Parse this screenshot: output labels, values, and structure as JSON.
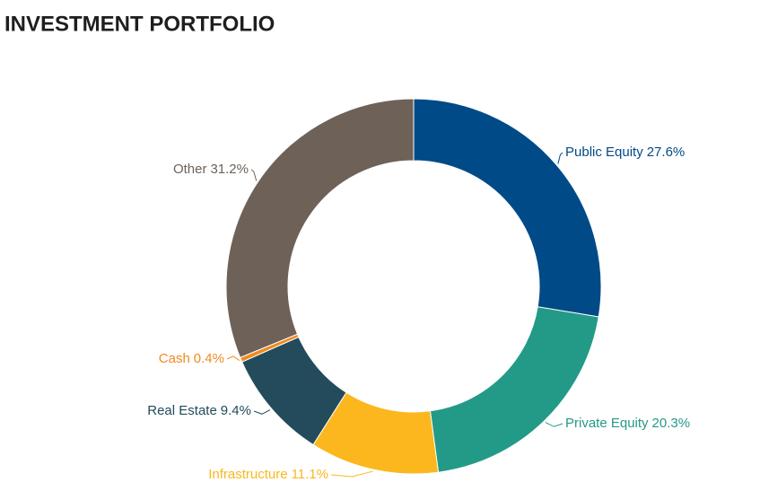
{
  "chart_data": {
    "type": "donut",
    "title": "INVESTMENT PORTFOLIO",
    "categories": [
      "Public Equity",
      "Private Equity",
      "Infrastructure",
      "Real Estate",
      "Cash",
      "Other"
    ],
    "values": [
      27.6,
      20.3,
      11.1,
      9.4,
      0.4,
      31.2
    ],
    "value_labels": [
      "27.6%",
      "20.3%",
      "11.1%",
      "9.4%",
      "0.4%",
      "31.2%"
    ],
    "colors": [
      "#004a87",
      "#239a87",
      "#fbb71d",
      "#234b5b",
      "#f08a1e",
      "#6e6157"
    ]
  }
}
